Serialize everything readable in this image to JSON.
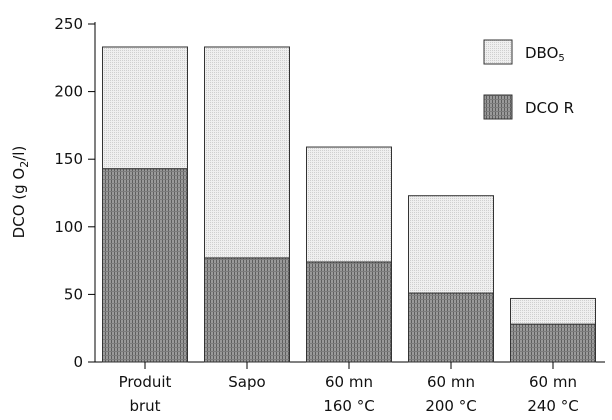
{
  "chart_data": {
    "type": "bar",
    "stacked": true,
    "categories": [
      [
        "Produit",
        "brut"
      ],
      [
        "Sapo"
      ],
      [
        "60 mn",
        "160 °C"
      ],
      [
        "60 mn",
        "200 °C"
      ],
      [
        "60 mn",
        "240 °C"
      ]
    ],
    "series": [
      {
        "name": "DCO R",
        "values": [
          143,
          77,
          74,
          51,
          28
        ],
        "color": "#8a8a8a"
      },
      {
        "name": "DBO5",
        "values": [
          90,
          156,
          85,
          72,
          19
        ],
        "color": "#e9e9e9"
      }
    ],
    "title": "",
    "xlabel": "",
    "ylabel": "DCO (g O2/l)",
    "ylim": [
      0,
      250
    ],
    "yticks": [
      0,
      50,
      100,
      150,
      200,
      250
    ],
    "grid": false,
    "legend": {
      "placement": "top-right",
      "entries": [
        {
          "text": "DBO",
          "sub": "5",
          "series": "DBO5"
        },
        {
          "text": "DCO R",
          "sub": "",
          "series": "DCO R"
        }
      ]
    }
  }
}
